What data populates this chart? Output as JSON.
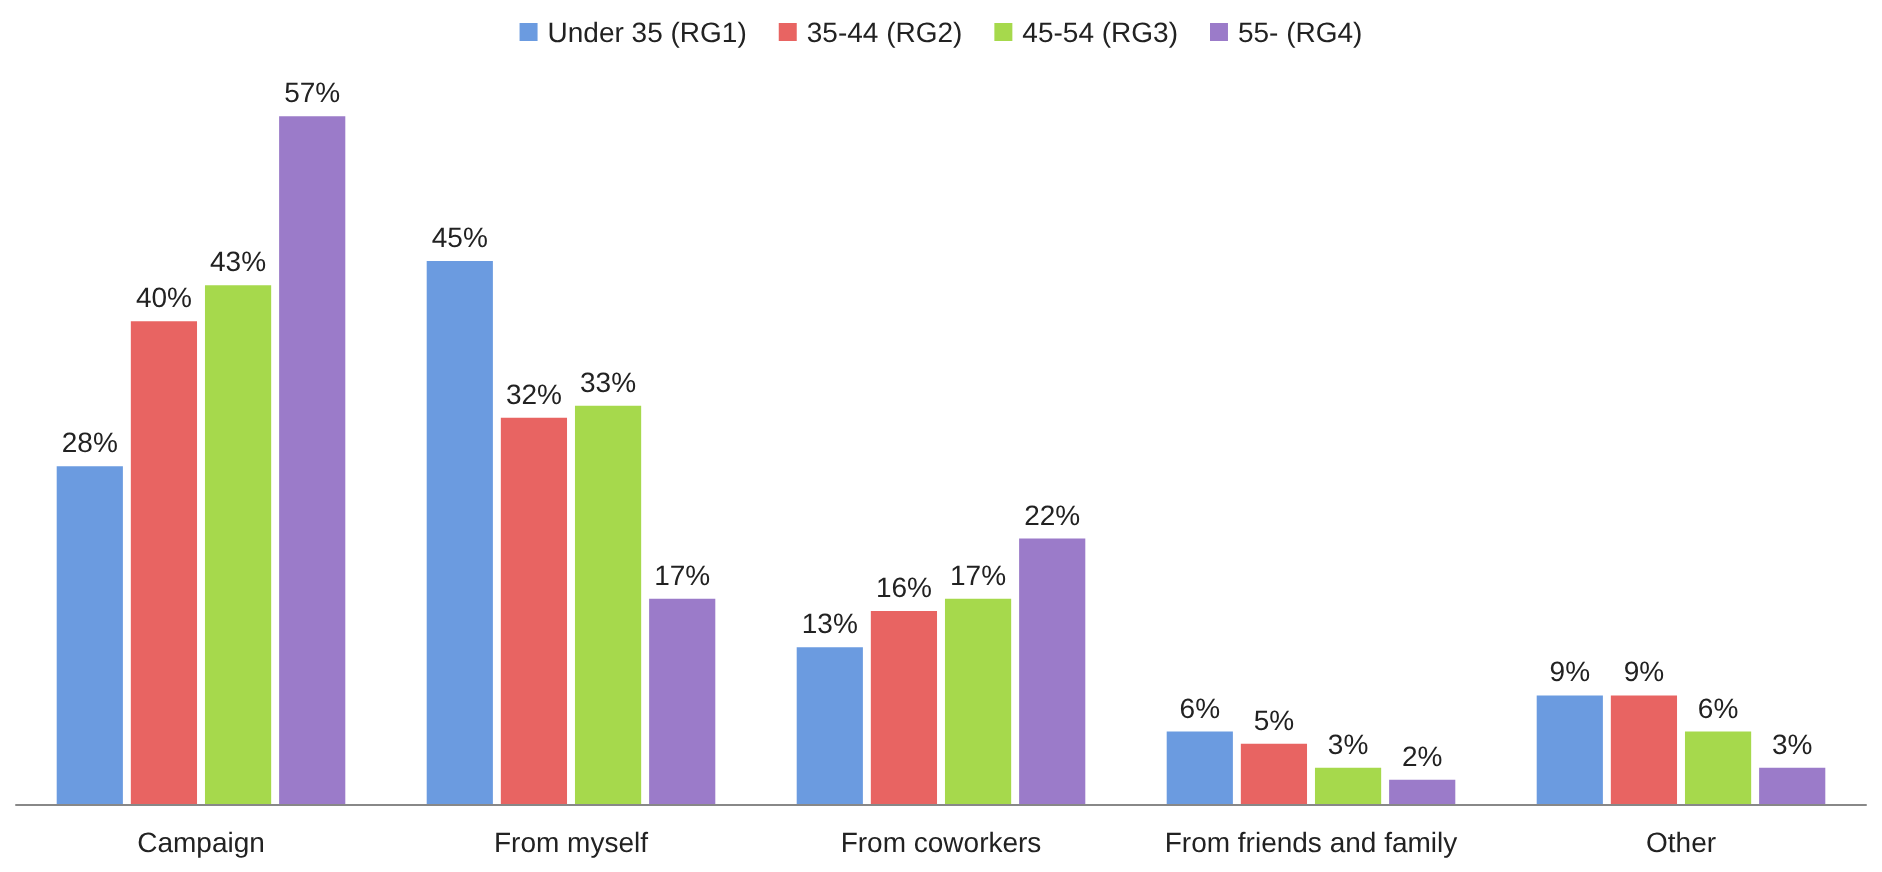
{
  "chart_data": {
    "type": "bar",
    "categories": [
      "Campaign",
      "From myself",
      "From coworkers",
      "From friends and family",
      "Other"
    ],
    "series": [
      {
        "name": "Under 35 (RG1)",
        "color": "#6b9be0",
        "values": [
          28,
          45,
          13,
          6,
          9
        ],
        "value_labels": [
          "28%",
          "45%",
          "13%",
          "6%",
          "9%"
        ]
      },
      {
        "name": "35-44 (RG2)",
        "color": "#e86462",
        "values": [
          40,
          32,
          16,
          5,
          9
        ],
        "value_labels": [
          "40%",
          "32%",
          "16%",
          "5%",
          "9%"
        ]
      },
      {
        "name": "45-54 (RG3)",
        "color": "#a6d94c",
        "values": [
          43,
          33,
          17,
          3,
          6
        ],
        "value_labels": [
          "43%",
          "33%",
          "17%",
          "3%",
          "6%"
        ]
      },
      {
        "name": "55- (RG4)",
        "color": "#9b7bc9",
        "values": [
          57,
          17,
          22,
          2,
          3
        ],
        "value_labels": [
          "57%",
          "17%",
          "22%",
          "2%",
          "3%"
        ]
      }
    ],
    "legend": "top"
  }
}
